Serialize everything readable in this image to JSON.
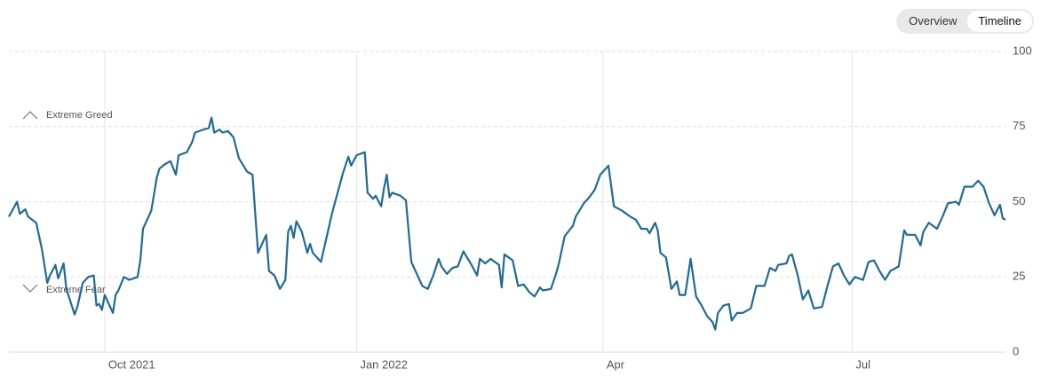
{
  "chart_data": {
    "type": "line",
    "annotations": [
      "Extreme Greed",
      "Extreme Fear"
    ],
    "x": [
      0,
      3,
      4,
      6,
      7,
      10,
      12,
      14,
      15,
      17,
      18,
      20,
      21,
      24,
      25,
      27,
      29,
      31,
      32,
      33,
      34,
      35,
      38,
      39,
      40,
      42,
      44,
      47,
      48,
      49,
      52,
      54,
      55,
      57,
      59,
      61,
      62,
      65,
      67,
      68,
      71,
      73,
      74,
      75,
      77,
      78,
      80,
      82,
      84,
      87,
      89,
      91,
      94,
      95,
      97,
      99,
      101,
      102,
      103,
      104,
      105,
      107,
      109,
      110,
      111,
      114,
      118,
      122,
      124,
      125,
      127,
      130,
      131,
      133,
      134,
      136,
      137,
      138,
      139,
      140,
      143,
      145,
      147,
      149,
      151,
      153,
      155,
      157,
      158,
      160,
      162,
      164,
      166,
      169,
      171,
      172,
      174,
      176,
      179,
      180,
      181,
      184,
      186,
      188,
      190,
      192,
      194,
      195,
      198,
      200,
      201,
      203,
      206,
      207,
      210,
      212,
      214,
      216,
      219,
      221,
      224,
      227,
      229,
      231,
      233,
      234,
      236,
      237,
      238,
      240,
      242,
      244,
      245,
      247,
      249,
      251,
      253,
      255,
      257,
      258,
      259,
      261,
      263,
      264,
      266,
      268,
      271,
      273,
      276,
      278,
      280,
      281,
      284,
      285,
      286,
      288,
      290,
      292,
      294,
      297,
      299,
      301,
      303,
      305,
      307,
      309,
      312,
      314,
      316,
      318,
      320,
      322,
      325,
      327,
      328,
      331,
      333,
      334,
      336,
      339,
      341,
      343,
      346,
      347,
      349,
      352,
      354,
      356,
      358,
      360,
      362,
      363,
      364
    ],
    "series": [
      {
        "color": "#1f6b96",
        "values": [
          45,
          50,
          46,
          47.5,
          45,
          43,
          34.5,
          23,
          25.5,
          29,
          24.5,
          29.5,
          21,
          12.5,
          15,
          23,
          25,
          25.5,
          15.5,
          16,
          14,
          19,
          13,
          19,
          20.5,
          25,
          24,
          25,
          30.5,
          41,
          47,
          58,
          61,
          62.5,
          63.5,
          59,
          65.5,
          66.5,
          70,
          73,
          74,
          74.5,
          78,
          73,
          74,
          73,
          73.5,
          71.5,
          64.5,
          60,
          59,
          33,
          39,
          27,
          25.5,
          21,
          24,
          40,
          42,
          38,
          43.5,
          40,
          33,
          36,
          33,
          30,
          46,
          59.5,
          65,
          62,
          65.5,
          66.5,
          53,
          51,
          52,
          48.5,
          54.5,
          59,
          51.5,
          53,
          52,
          50.5,
          30,
          26,
          22,
          21,
          25.5,
          31,
          28.5,
          26,
          28,
          28.5,
          33.5,
          29,
          25.5,
          31,
          29.5,
          31,
          29,
          21.5,
          32.5,
          30.5,
          22,
          22.5,
          20,
          18.5,
          21.5,
          20.5,
          21,
          26.5,
          30,
          38.5,
          42,
          45,
          49.5,
          51.5,
          54,
          59,
          62,
          48.5,
          47,
          45,
          44,
          41,
          41,
          39.5,
          43,
          40.5,
          33,
          31.5,
          21,
          23.5,
          19,
          19,
          31,
          18.5,
          15.5,
          12,
          10,
          7.5,
          13,
          15.5,
          16,
          10.5,
          13,
          13,
          14.5,
          22,
          22,
          28,
          27,
          29,
          29.5,
          32,
          32.5,
          26,
          17.5,
          20.5,
          14.5,
          15,
          22,
          28.5,
          29.5,
          25.5,
          22.5,
          25,
          24,
          30,
          30.5,
          27,
          24,
          27,
          28.5,
          40.5,
          39,
          39,
          35.5,
          40,
          43,
          41,
          45,
          49.5,
          50,
          49,
          55,
          55,
          57,
          55,
          49.5,
          45.5,
          49,
          44.5,
          44
        ]
      }
    ],
    "xlim": [
      0,
      364
    ],
    "xticks": [
      {
        "value": 35,
        "label": "Oct 2021"
      },
      {
        "value": 127,
        "label": "Jan 2022"
      },
      {
        "value": 217,
        "label": "Apr"
      },
      {
        "value": 308,
        "label": "Jul"
      }
    ],
    "ylim": [
      0,
      100
    ],
    "yticks": [
      0,
      25,
      50,
      75,
      100
    ],
    "grid": true
  },
  "tabs": {
    "items": [
      "Overview",
      "Timeline"
    ]
  }
}
